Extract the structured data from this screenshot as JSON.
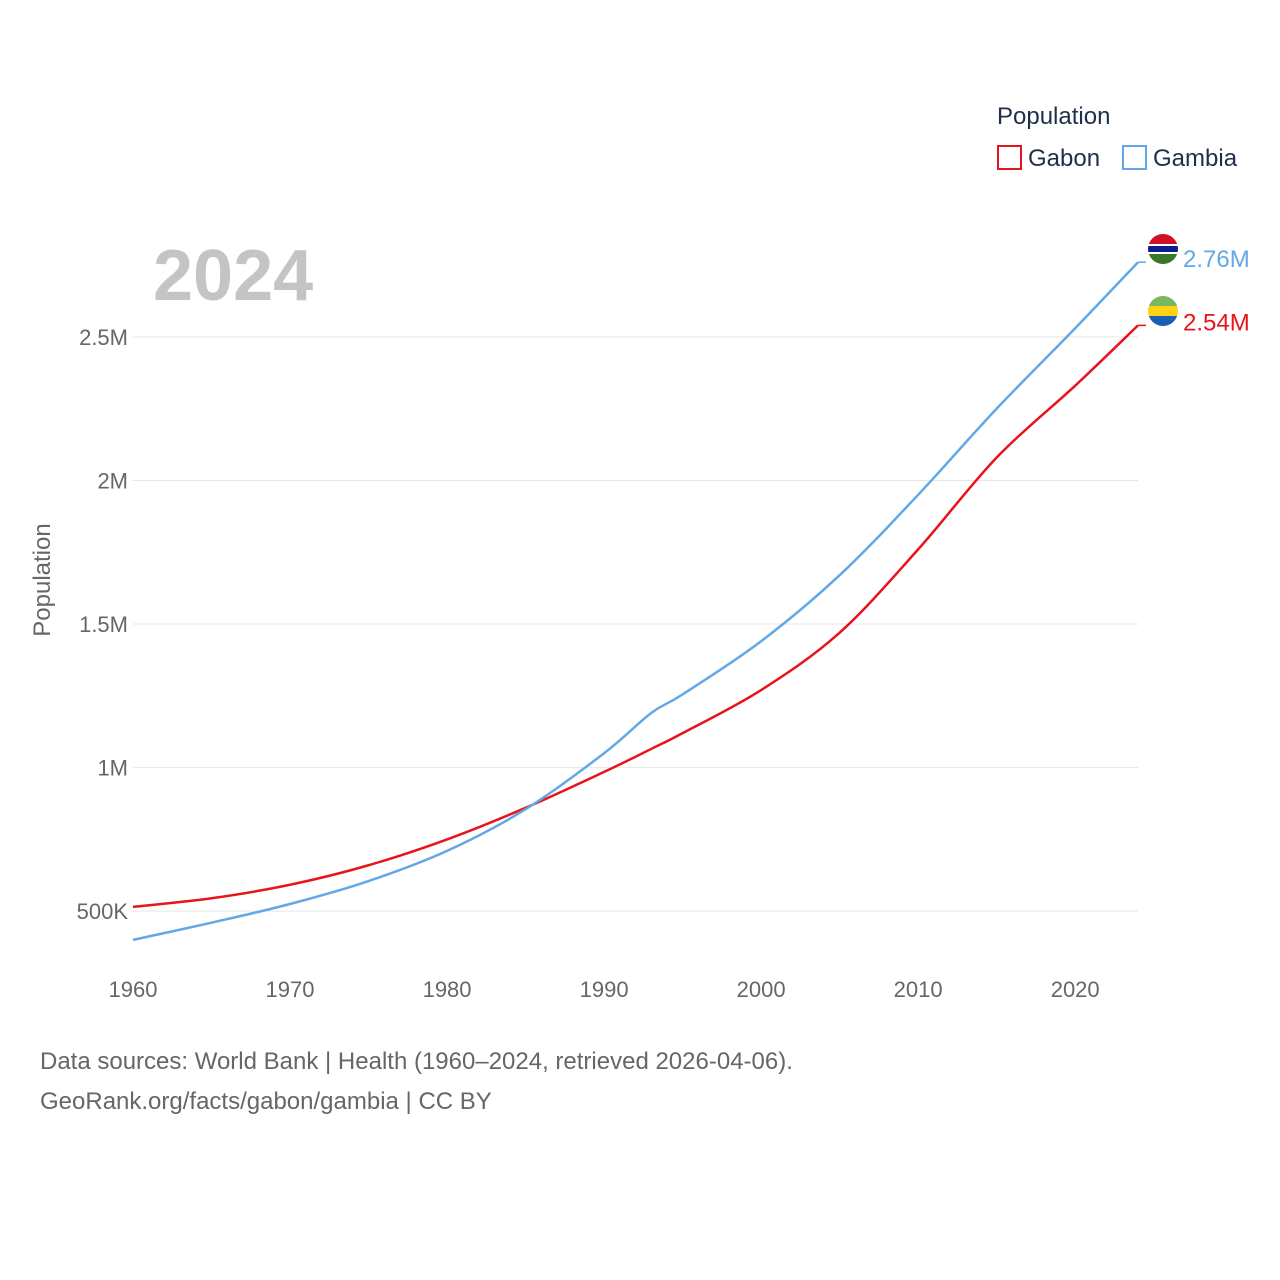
{
  "chart_data": {
    "type": "line",
    "title": "",
    "year_label": "2024",
    "xlabel": "",
    "ylabel": "Population",
    "xlim": [
      1960,
      2024
    ],
    "ylim": [
      330000,
      2900000
    ],
    "x_ticks": [
      1960,
      1970,
      1980,
      1990,
      2000,
      2010,
      2020
    ],
    "y_ticks": [
      {
        "value": 500000,
        "label": "500K"
      },
      {
        "value": 1000000,
        "label": "1M"
      },
      {
        "value": 1500000,
        "label": "1.5M"
      },
      {
        "value": 2000000,
        "label": "2M"
      },
      {
        "value": 2500000,
        "label": "2.5M"
      }
    ],
    "grid": true,
    "legend": {
      "title": "Population",
      "position": "top-right"
    },
    "x": [
      1960,
      1965,
      1970,
      1975,
      1980,
      1985,
      1990,
      1993,
      1995,
      2000,
      2005,
      2010,
      2015,
      2020,
      2024
    ],
    "series": [
      {
        "name": "Gabon",
        "color": "#e8141b",
        "values": [
          515000,
          545000,
          592000,
          660000,
          750000,
          860000,
          985000,
          1065000,
          1120000,
          1270000,
          1470000,
          1760000,
          2080000,
          2330000,
          2540000
        ],
        "end_label": "2.54M",
        "flag": "gabon-flag"
      },
      {
        "name": "Gambia",
        "color": "#62a8e6",
        "values": [
          400000,
          460000,
          525000,
          605000,
          710000,
          855000,
          1050000,
          1190000,
          1255000,
          1440000,
          1670000,
          1950000,
          2250000,
          2530000,
          2760000
        ],
        "end_label": "2.76M",
        "flag": "gambia-flag"
      }
    ]
  },
  "source": {
    "line1": "Data sources: World Bank | Health (1960–2024, retrieved 2026-04-06).",
    "line2": "GeoRank.org/facts/gabon/gambia | CC BY"
  }
}
